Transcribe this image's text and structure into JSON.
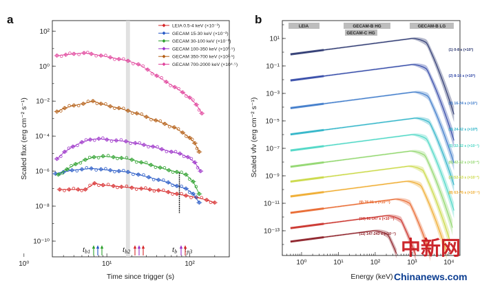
{
  "panels": {
    "a": "a",
    "b": "b"
  },
  "chart_data": [
    {
      "type": "scatter",
      "xscale": "log",
      "yscale": "log",
      "xlabel": "Time since trigger (s)",
      "ylabel": "Scaled flux (erg cm⁻² s⁻¹)",
      "xlim": [
        2.2,
        300
      ],
      "ylim_exp": [
        -10.9,
        2.6
      ],
      "xticks": [
        "10⁰",
        "10¹",
        "10²"
      ],
      "yticks": [
        "10⁻¹⁰",
        "10⁻⁸",
        "10⁻⁶",
        "10⁻⁴",
        "10⁻²",
        "10⁰",
        "10²"
      ],
      "series": [
        {
          "name": "LEIA 0.5-4 keV (×10⁻³)",
          "color": "#d62728",
          "log_offset": -3,
          "points": [
            [
              2.7,
              -7.05
            ],
            [
              3.5,
              -7.05
            ],
            [
              4.5,
              -7.05
            ],
            [
              5.5,
              -7.05
            ],
            [
              7.1,
              -6.7
            ],
            [
              9,
              -6.8
            ],
            [
              12,
              -6.85
            ],
            [
              15,
              -6.9
            ],
            [
              20,
              -6.95
            ],
            [
              26,
              -7.0
            ],
            [
              33,
              -7.05
            ],
            [
              42,
              -7.1
            ],
            [
              55,
              -7.2
            ],
            [
              70,
              -7.3
            ],
            [
              90,
              -7.4
            ],
            [
              120,
              -7.5
            ],
            [
              160,
              -7.65
            ],
            [
              200,
              -7.8
            ]
          ]
        },
        {
          "name": "GECAM 15-30 keV (×10⁻²)",
          "color": "#2457c5",
          "log_offset": -2,
          "points": [
            [
              2.4,
              -6.15
            ],
            [
              3,
              -6.05
            ],
            [
              3.8,
              -5.95
            ],
            [
              5,
              -5.9
            ],
            [
              6.5,
              -5.85
            ],
            [
              8.5,
              -5.9
            ],
            [
              11,
              -5.95
            ],
            [
              14,
              -6.0
            ],
            [
              18,
              -6.05
            ],
            [
              24,
              -6.2
            ],
            [
              32,
              -6.35
            ],
            [
              42,
              -6.5
            ],
            [
              55,
              -6.65
            ],
            [
              70,
              -6.85
            ],
            [
              90,
              -7.0
            ],
            [
              110,
              -7.3
            ],
            [
              130,
              -7.8
            ]
          ]
        },
        {
          "name": "GECAM 30-100 keV (×10⁻¹)",
          "color": "#2ca02c",
          "log_offset": -1,
          "points": [
            [
              2.6,
              -6.2
            ],
            [
              3.3,
              -5.9
            ],
            [
              4.2,
              -5.6
            ],
            [
              5.5,
              -5.35
            ],
            [
              7,
              -5.2
            ],
            [
              9,
              -5.15
            ],
            [
              12,
              -5.2
            ],
            [
              15,
              -5.25
            ],
            [
              20,
              -5.35
            ],
            [
              26,
              -5.5
            ],
            [
              34,
              -5.65
            ],
            [
              44,
              -5.8
            ],
            [
              56,
              -5.95
            ],
            [
              70,
              -6.05
            ],
            [
              90,
              -6.2
            ],
            [
              110,
              -6.6
            ],
            [
              130,
              -7.3
            ]
          ]
        },
        {
          "name": "GECAM 100-350 keV (×10⁰·⁵)",
          "color": "#9b30c8",
          "log_offset": 0.5,
          "points": [
            [
              2.5,
              -5.3
            ],
            [
              3.1,
              -4.9
            ],
            [
              3.9,
              -4.6
            ],
            [
              5,
              -4.35
            ],
            [
              6.3,
              -4.2
            ],
            [
              8,
              -4.15
            ],
            [
              10,
              -4.2
            ],
            [
              13,
              -4.25
            ],
            [
              17,
              -4.3
            ],
            [
              22,
              -4.4
            ],
            [
              28,
              -4.5
            ],
            [
              36,
              -4.6
            ],
            [
              46,
              -4.75
            ],
            [
              60,
              -4.9
            ],
            [
              76,
              -5.0
            ],
            [
              95,
              -5.2
            ],
            [
              115,
              -5.5
            ],
            [
              135,
              -6.0
            ]
          ]
        },
        {
          "name": "GECAM 350-700 keV (×10²·⁵)",
          "color": "#b35c12",
          "log_offset": 2.5,
          "points": [
            [
              2.5,
              -2.6
            ],
            [
              3.1,
              -2.4
            ],
            [
              4,
              -2.25
            ],
            [
              5.2,
              -2.15
            ],
            [
              6.8,
              -2.0
            ],
            [
              8.5,
              -2.15
            ],
            [
              11,
              -2.3
            ],
            [
              14,
              -2.4
            ],
            [
              18,
              -2.55
            ],
            [
              23,
              -2.7
            ],
            [
              30,
              -2.9
            ],
            [
              39,
              -3.1
            ],
            [
              50,
              -3.3
            ],
            [
              65,
              -3.5
            ],
            [
              82,
              -3.8
            ],
            [
              100,
              -4.1
            ],
            [
              115,
              -4.4
            ],
            [
              130,
              -4.9
            ]
          ]
        },
        {
          "name": "GECAM 700-2000 keV (×10⁴·⁵)",
          "color": "#e0409a",
          "log_offset": 4.5,
          "points": [
            [
              2.5,
              0.6
            ],
            [
              3.2,
              0.65
            ],
            [
              4,
              0.7
            ],
            [
              5.3,
              0.75
            ],
            [
              6.5,
              0.7
            ],
            [
              8.5,
              0.6
            ],
            [
              11,
              0.5
            ],
            [
              14,
              0.4
            ],
            [
              18,
              0.3
            ],
            [
              24,
              0.1
            ],
            [
              31,
              -0.2
            ],
            [
              40,
              -0.55
            ],
            [
              52,
              -0.9
            ],
            [
              66,
              -1.2
            ],
            [
              82,
              -1.5
            ],
            [
              100,
              -1.8
            ],
            [
              120,
              -2.2
            ],
            [
              140,
              -2.7
            ]
          ]
        }
      ],
      "time_markers": [
        "t",
        "b1",
        "t",
        "b2",
        "t",
        "b",
        "t",
        "p3"
      ],
      "shaded_band_s": [
        17,
        19
      ]
    },
    {
      "type": "line",
      "xscale": "log",
      "yscale": "log",
      "xlabel": "Energy (keV)",
      "ylabel": "Scaled νfν (erg cm⁻² s⁻¹)",
      "xlim": [
        0.3,
        20000
      ],
      "ylim_exp": [
        -14.8,
        2.3
      ],
      "xticks": [
        "10⁰",
        "10¹",
        "10²",
        "10³",
        "10⁴"
      ],
      "yticks": [
        "10¹",
        "10⁻¹",
        "10⁻³",
        "10⁻⁵",
        "10⁻⁷",
        "10⁻⁹",
        "10⁻¹¹",
        "10⁻¹³"
      ],
      "bands": [
        "LEIA",
        "GECAM-B HG",
        "GECAM-C HG",
        "GECAM-B LG"
      ],
      "series": [
        {
          "name": "(1) 0-8 s (×10³)",
          "color": "#28346e",
          "peak_kev": 1000,
          "peak_exp": 1.0
        },
        {
          "name": "(2) 8-16 s (×10²)",
          "color": "#2e45a5",
          "peak_kev": 1000,
          "peak_exp": -0.9
        },
        {
          "name": "(3) 16-24 s (×10¹)",
          "color": "#3a78c9",
          "peak_kev": 1100,
          "peak_exp": -2.9
        },
        {
          "name": "(4) 24-32 s (×10⁰)",
          "color": "#2bb3c7",
          "peak_kev": 1200,
          "peak_exp": -4.8
        },
        {
          "name": "(5) 32-42 s (×10⁻¹)",
          "color": "#49d6c4",
          "peak_kev": 1000,
          "peak_exp": -6.0
        },
        {
          "name": "(6) 42-52 s (×10⁻²)",
          "color": "#8fd66b",
          "peak_kev": 900,
          "peak_exp": -7.2
        },
        {
          "name": "(7) 52-63 s (×10⁻³)",
          "color": "#c9d842",
          "peak_kev": 800,
          "peak_exp": -8.3
        },
        {
          "name": "(8) 63-76 s (×10⁻⁴)",
          "color": "#efaa2a",
          "peak_kev": 700,
          "peak_exp": -9.4
        },
        {
          "name": "(9) 76-91 s (×10⁻⁵)",
          "color": "#e8652a",
          "peak_kev": 350,
          "peak_exp": -10.7
        },
        {
          "name": "(10) 91-147 s (×10⁻⁶)",
          "color": "#c92d26",
          "peak_kev": 200,
          "peak_exp": -11.9
        },
        {
          "name": "(11) 147-243 s (×10⁻⁷)",
          "color": "#8a1a22",
          "peak_kev": 90,
          "peak_exp": -13.0
        }
      ]
    }
  ],
  "watermark": {
    "cn": "中新网",
    "site": "Chinanews.com"
  }
}
